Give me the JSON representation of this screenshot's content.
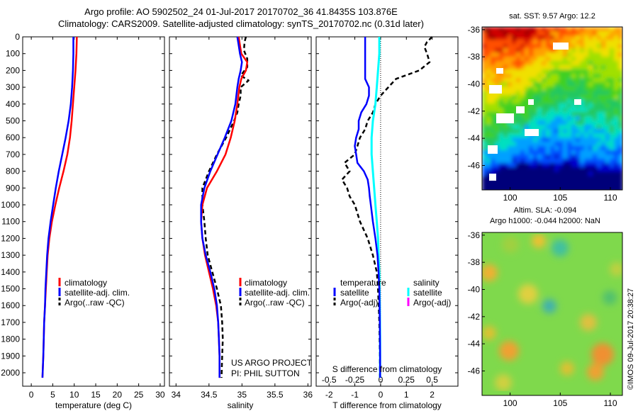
{
  "header": {
    "title_line1": "Argo profile: AO 5902502_24 01-Jul-2017 20170702_36 41.8435S 103.876E",
    "title_line2": "Climatology: CARS2009. Satellite-adjusted climatology: synTS_20170702.nc (0.31d later)"
  },
  "colors": {
    "climatology": "#ff0000",
    "satellite_adj": "#0000ff",
    "argo": "#000000",
    "s_satellite": "#00ffff",
    "s_argo": "#ff00ff"
  },
  "chart_data": [
    {
      "type": "line",
      "panel": "temperature",
      "xlabel": "temperature (deg C)",
      "ylabel": "",
      "xlim": [
        -2,
        31
      ],
      "ylim": [
        2080,
        0
      ],
      "xticks": [
        "0",
        "5",
        "10",
        "15",
        "20",
        "25",
        "30"
      ],
      "yticks": [
        "0",
        "100",
        "200",
        "300",
        "400",
        "500",
        "600",
        "700",
        "800",
        "900",
        "1000",
        "1100",
        "1200",
        "1300",
        "1400",
        "1500",
        "1600",
        "1700",
        "1800",
        "1900",
        "2000"
      ],
      "legend": [
        "climatology",
        "satellite-adj. clim.",
        "Argo(..raw -QC)"
      ],
      "series": [
        {
          "name": "climatology",
          "depth": [
            0,
            100,
            200,
            300,
            400,
            500,
            600,
            700,
            800,
            900,
            1000,
            1100,
            1200,
            1300,
            1400,
            1500,
            1600,
            1700,
            1800,
            1900,
            2030
          ],
          "values": [
            10.6,
            10.5,
            10.3,
            10.0,
            9.7,
            9.4,
            9.0,
            8.4,
            7.5,
            6.5,
            5.6,
            4.8,
            4.2,
            3.8,
            3.6,
            3.4,
            3.2,
            3.0,
            2.9,
            2.8,
            2.6
          ]
        },
        {
          "name": "satellite-adj. clim.",
          "depth": [
            0,
            100,
            200,
            300,
            400,
            500,
            600,
            700,
            800,
            900,
            1000,
            1100,
            1200,
            1300,
            1400,
            1500,
            1600,
            1700,
            1800,
            1900,
            2030
          ],
          "values": [
            9.8,
            9.8,
            9.7,
            9.5,
            9.2,
            8.7,
            8.0,
            7.2,
            6.4,
            5.7,
            5.1,
            4.5,
            4.0,
            3.7,
            3.5,
            3.3,
            3.2,
            3.0,
            2.9,
            2.8,
            2.6
          ]
        }
      ]
    },
    {
      "type": "line",
      "panel": "salinity",
      "xlabel": "salinity",
      "xlim": [
        33.9,
        36.05
      ],
      "ylim": [
        2080,
        0
      ],
      "xticks": [
        "34",
        "34.5",
        "35",
        "35.5",
        "36"
      ],
      "legend": [
        "climatology",
        "satellite-adj. clim.",
        "Argo(..raw -QC)"
      ],
      "annotation": [
        "US ARGO PROJECT",
        "PI: PHIL SUTTON"
      ],
      "series": [
        {
          "name": "climatology",
          "depth": [
            0,
            50,
            100,
            150,
            200,
            250,
            300,
            400,
            500,
            600,
            700,
            800,
            900,
            1000,
            1100,
            1200,
            1300,
            1400,
            1500,
            1600,
            1700,
            1800,
            1900,
            2030
          ],
          "values": [
            34.95,
            34.97,
            34.99,
            35.08,
            35.06,
            34.99,
            34.96,
            34.93,
            34.89,
            34.83,
            34.75,
            34.62,
            34.47,
            34.4,
            34.38,
            34.4,
            34.44,
            34.5,
            34.56,
            34.61,
            34.64,
            34.65,
            34.66,
            34.66
          ]
        },
        {
          "name": "satellite-adj. clim.",
          "depth": [
            0,
            50,
            100,
            150,
            200,
            250,
            300,
            400,
            500,
            600,
            700,
            800,
            900,
            1000,
            1100,
            1200,
            1300,
            1400,
            1500,
            1600,
            1700,
            1800,
            1900,
            2030
          ],
          "values": [
            34.93,
            34.95,
            34.97,
            35.0,
            34.98,
            34.95,
            34.93,
            34.9,
            34.84,
            34.74,
            34.63,
            34.52,
            34.43,
            34.38,
            34.38,
            34.4,
            34.45,
            34.52,
            34.58,
            34.62,
            34.64,
            34.65,
            34.66,
            34.66
          ]
        },
        {
          "name": "Argo(..raw -QC)",
          "depth": [
            0,
            30,
            80,
            130,
            180,
            230,
            260,
            300,
            350,
            400,
            450,
            500,
            600,
            700,
            800,
            900,
            1000,
            1100,
            1200,
            1300,
            1400,
            1500,
            1600,
            1700,
            1800,
            1900,
            2030
          ],
          "values": [
            35.06,
            35.04,
            35.03,
            35.08,
            35.08,
            34.98,
            35.1,
            34.98,
            34.98,
            34.95,
            34.93,
            34.88,
            34.76,
            34.62,
            34.5,
            34.4,
            34.4,
            34.43,
            34.45,
            34.48,
            34.55,
            34.62,
            34.68,
            34.7,
            34.71,
            34.7,
            34.69
          ]
        }
      ]
    },
    {
      "type": "line",
      "panel": "difference",
      "xlabel": "T difference from climatology",
      "xlabel_top": "S difference from climatology",
      "xlim": [
        -2.5,
        3
      ],
      "ylim": [
        2080,
        0
      ],
      "xticks": [
        "-2",
        "-1",
        "0",
        "1",
        "2"
      ],
      "xticks_top": [
        "-0.5",
        "-0.25",
        "0",
        "0.25",
        "0.5"
      ],
      "legend_left_title": "temperature",
      "legend_left": [
        "satellite",
        "Argo(-adj)"
      ],
      "legend_right_title": "salinity",
      "legend_right": [
        "satellite",
        "Argo(-adj)"
      ],
      "series": [
        {
          "name": "T satellite",
          "depth": [
            0,
            50,
            100,
            150,
            200,
            250,
            300,
            350,
            400,
            450,
            500,
            550,
            600,
            650,
            700,
            750,
            800,
            850,
            900,
            950,
            1000,
            1100,
            1200,
            1300,
            1400,
            1500,
            1700,
            1900,
            2030
          ],
          "values": [
            -0.6,
            -0.6,
            -0.6,
            -0.6,
            -0.6,
            -0.6,
            -0.45,
            -0.45,
            -0.55,
            -0.75,
            -0.85,
            -0.85,
            -0.95,
            -1.0,
            -0.95,
            -0.9,
            -0.65,
            -0.5,
            -0.45,
            -0.42,
            -0.38,
            -0.3,
            -0.2,
            -0.12,
            -0.08,
            -0.05,
            -0.03,
            -0.02,
            -0.02
          ]
        },
        {
          "name": "S satellite",
          "depth": [
            0,
            100,
            200,
            300,
            400,
            500,
            600,
            700,
            800,
            900,
            1000,
            1100,
            1200,
            1300,
            1400,
            1600,
            1800,
            2030
          ],
          "values": [
            -0.05,
            -0.05,
            -0.1,
            -0.15,
            -0.2,
            -0.3,
            -0.35,
            -0.35,
            -0.3,
            -0.25,
            -0.2,
            -0.15,
            -0.1,
            -0.08,
            -0.05,
            -0.03,
            -0.02,
            -0.02
          ]
        },
        {
          "name": "T Argo(-adj)",
          "depth": [
            0,
            30,
            60,
            100,
            150,
            200,
            250,
            300,
            350,
            400,
            450,
            500,
            550,
            600,
            650,
            700,
            750,
            800,
            850,
            900,
            950,
            1000,
            1050,
            1100,
            1200,
            1300,
            1400,
            1500,
            1700,
            1900,
            2030
          ],
          "values": [
            2.0,
            1.8,
            1.7,
            1.8,
            1.9,
            1.5,
            0.6,
            0.3,
            0.0,
            -0.2,
            -0.3,
            -0.5,
            -0.6,
            -0.8,
            -0.9,
            -1.0,
            -1.4,
            -1.2,
            -1.5,
            -1.3,
            -1.2,
            -1.0,
            -0.9,
            -0.8,
            -0.5,
            -0.3,
            -0.15,
            -0.1,
            -0.05,
            -0.03,
            -0.03
          ]
        }
      ]
    },
    {
      "type": "heatmap",
      "panel": "satellite SST",
      "title": "sat. SST: 9.57  Argo: 12.2",
      "xticks": [
        "100",
        "105",
        "110"
      ],
      "yticks": [
        "-36",
        "-38",
        "-40",
        "-42",
        "-44",
        "-46"
      ]
    },
    {
      "type": "heatmap",
      "panel": "altimetry SLA",
      "title_line1": "Altim. SLA: -0.094",
      "title_line2": "Argo h1000: -0.044  h2000: NaN",
      "xticks": [
        "100",
        "105",
        "110"
      ],
      "yticks": [
        "-36",
        "-38",
        "-40",
        "-42",
        "-44",
        "-46"
      ],
      "side_label": "©IMOS 09-Jul-2017 20:38:27"
    }
  ]
}
